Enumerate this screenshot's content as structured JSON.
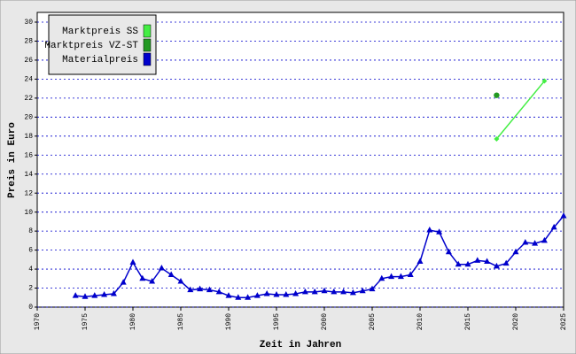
{
  "chart_data": {
    "type": "line",
    "x_label": "Zeit in Jahren",
    "y_label": "Preis in Euro",
    "xlim": [
      1970,
      2025
    ],
    "xticks": [
      1970,
      1975,
      1980,
      1985,
      1990,
      1995,
      2000,
      2005,
      2010,
      2015,
      2020,
      2025
    ],
    "ylim": [
      0,
      30
    ],
    "yticks": [
      0,
      2,
      4,
      6,
      8,
      10,
      12,
      14,
      16,
      18,
      20,
      22,
      24,
      26,
      28,
      30
    ],
    "grid": true,
    "legend": "upper left",
    "series": [
      {
        "name": "Marktpreis SS",
        "color": "#44ee44",
        "marker": "diamond",
        "x": [
          2018,
          2023
        ],
        "values": [
          17.7,
          23.8
        ]
      },
      {
        "name": "Marktpreis VZ-ST",
        "color": "#229922",
        "marker": "circle",
        "x": [
          2018
        ],
        "values": [
          22.3
        ]
      },
      {
        "name": "Materialpreis",
        "color": "#0000cc",
        "marker": "triangle",
        "x": [
          1974,
          1975,
          1976,
          1977,
          1978,
          1979,
          1980,
          1981,
          1982,
          1983,
          1984,
          1985,
          1986,
          1987,
          1988,
          1989,
          1990,
          1991,
          1992,
          1993,
          1994,
          1995,
          1996,
          1997,
          1998,
          1999,
          2000,
          2001,
          2002,
          2003,
          2004,
          2005,
          2006,
          2007,
          2008,
          2009,
          2010,
          2011,
          2012,
          2013,
          2014,
          2015,
          2016,
          2017,
          2018,
          2019,
          2020,
          2021,
          2022,
          2023,
          2024,
          2025
        ],
        "values": [
          1.2,
          1.1,
          1.2,
          1.3,
          1.4,
          2.6,
          4.7,
          3.0,
          2.7,
          4.1,
          3.4,
          2.7,
          1.8,
          1.9,
          1.8,
          1.6,
          1.2,
          1.0,
          1.0,
          1.2,
          1.4,
          1.3,
          1.3,
          1.4,
          1.6,
          1.6,
          1.7,
          1.6,
          1.6,
          1.5,
          1.7,
          1.9,
          3.0,
          3.2,
          3.2,
          3.4,
          4.8,
          8.1,
          7.9,
          5.8,
          4.5,
          4.5,
          4.9,
          4.8,
          4.3,
          4.6,
          5.8,
          6.8,
          6.7,
          7.0,
          8.4,
          9.6
        ]
      }
    ]
  }
}
